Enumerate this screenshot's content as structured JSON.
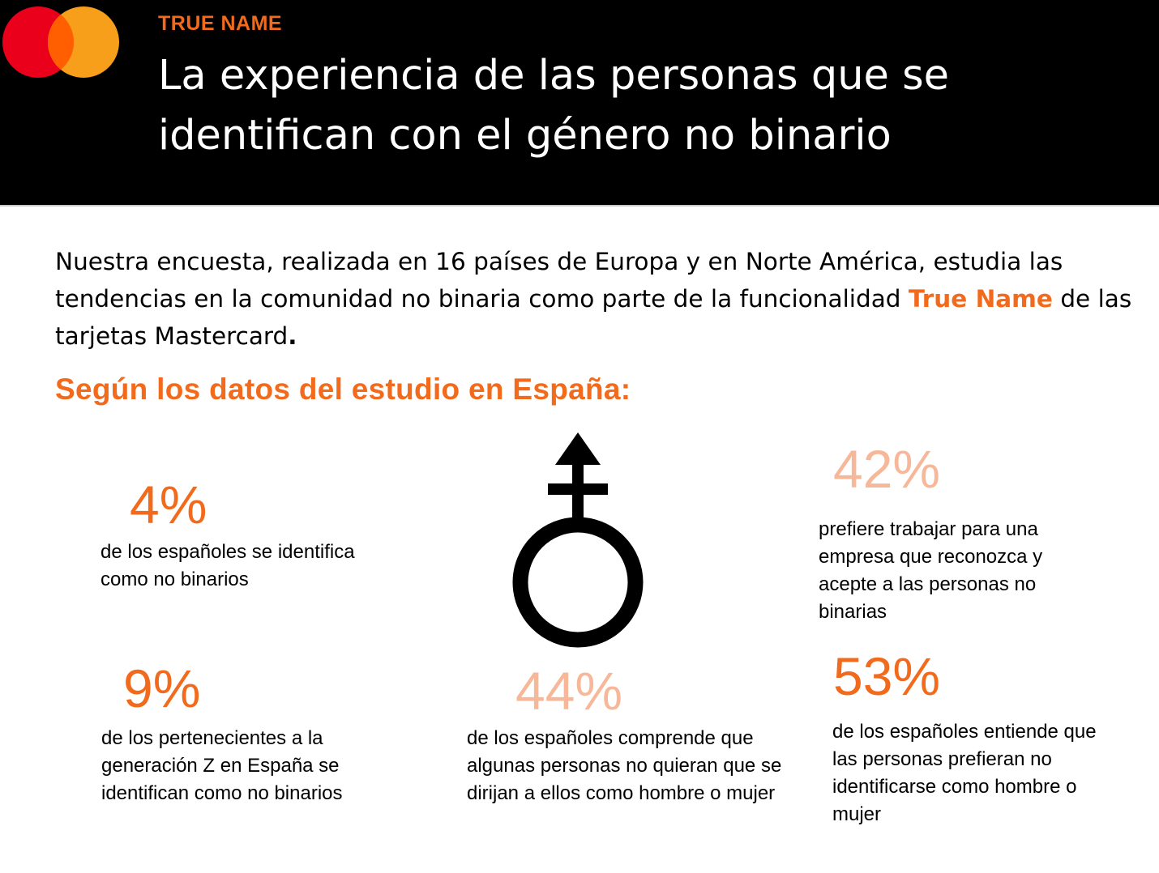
{
  "header": {
    "kicker": "TRUE NAME",
    "title_line1": "La experiencia de las personas que se",
    "title_line2": "identifican con el género no binario",
    "logo_colors": {
      "left": "#eb001b",
      "right": "#f79e1b",
      "overlap": "#ff5f00"
    }
  },
  "intro": {
    "text_before": "Nuestra encuesta, realizada en 16 países de Europa y en Norte América, estudia las tendencias en la comunidad no binaria como parte de la funcionalidad ",
    "brand": "True Name",
    "text_after": " de las tarjetas Mastercard",
    "end_mark": "."
  },
  "subhead": "Según los datos del estudio en España:",
  "stats": [
    {
      "value": "4%",
      "text": "de los españoles se identifica como no binarios"
    },
    {
      "value": "9%",
      "text": "de los pertenecientes a la generación Z en España se identifican como no binarios"
    },
    {
      "value": "44%",
      "text": "de  los españoles comprende que algunas personas no quieran que se dirijan a ellos como hombre o mujer"
    },
    {
      "value": "42%",
      "text": "prefiere trabajar para una empresa que reconozca y acepte a las personas no binarias"
    },
    {
      "value": "53%",
      "text": "de los españoles entiende que las personas prefieran no identificarse como hombre o mujer"
    }
  ],
  "colors": {
    "accent": "#f26b1d",
    "accent_light": "#f7b799",
    "header_bg": "#000000"
  },
  "icons": {
    "center_symbol": "non-binary-gender-symbol-icon",
    "logo": "mastercard-logo-icon"
  }
}
